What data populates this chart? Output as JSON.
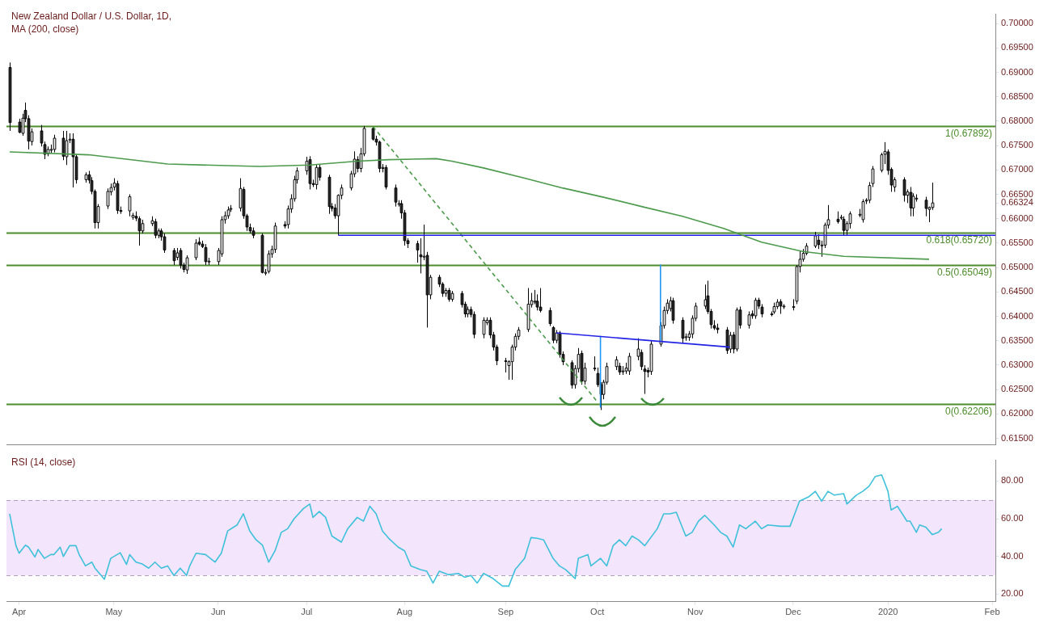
{
  "chart_data": [
    {
      "type": "candlestick",
      "title": "New Zealand Dollar / U.S. Dollar, 1D,",
      "subtitle": "MA (200, close)",
      "x": [
        "2019-03-29",
        "2019-04-01",
        "2019-04-02",
        "2019-04-03",
        "2019-04-04",
        "2019-04-05",
        "2019-04-08",
        "2019-04-09",
        "2019-04-10",
        "2019-04-11",
        "2019-04-12",
        "2019-04-15",
        "2019-04-16",
        "2019-04-17",
        "2019-04-18",
        "2019-04-19",
        "2019-04-22",
        "2019-04-23",
        "2019-04-24",
        "2019-04-25",
        "2019-04-26",
        "2019-04-29",
        "2019-04-30",
        "2019-05-01",
        "2019-05-02",
        "2019-05-03",
        "2019-05-06",
        "2019-05-07",
        "2019-05-08",
        "2019-05-09",
        "2019-05-10",
        "2019-05-13",
        "2019-05-14",
        "2019-05-15",
        "2019-05-16",
        "2019-05-17",
        "2019-05-20",
        "2019-05-21",
        "2019-05-22",
        "2019-05-23",
        "2019-05-24",
        "2019-05-27",
        "2019-05-28",
        "2019-05-29",
        "2019-05-30",
        "2019-05-31",
        "2019-06-03",
        "2019-06-04",
        "2019-06-05",
        "2019-06-06",
        "2019-06-07",
        "2019-06-10",
        "2019-06-11",
        "2019-06-12",
        "2019-06-13",
        "2019-06-14",
        "2019-06-17",
        "2019-06-18",
        "2019-06-19",
        "2019-06-20",
        "2019-06-21",
        "2019-06-24",
        "2019-06-25",
        "2019-06-26",
        "2019-06-27",
        "2019-06-28",
        "2019-07-01",
        "2019-07-02",
        "2019-07-03",
        "2019-07-04",
        "2019-07-05",
        "2019-07-08",
        "2019-07-09",
        "2019-07-10",
        "2019-07-11",
        "2019-07-12",
        "2019-07-15",
        "2019-07-16",
        "2019-07-17",
        "2019-07-18",
        "2019-07-19",
        "2019-07-22",
        "2019-07-23",
        "2019-07-24",
        "2019-07-25",
        "2019-07-26",
        "2019-07-29",
        "2019-07-30",
        "2019-07-31",
        "2019-08-01",
        "2019-08-02",
        "2019-08-05",
        "2019-08-06",
        "2019-08-07",
        "2019-08-08",
        "2019-08-09",
        "2019-08-12",
        "2019-08-13",
        "2019-08-14",
        "2019-08-15",
        "2019-08-16",
        "2019-08-19",
        "2019-08-20",
        "2019-08-21",
        "2019-08-22",
        "2019-08-23",
        "2019-08-26",
        "2019-08-27",
        "2019-08-28",
        "2019-08-29",
        "2019-08-30",
        "2019-09-02",
        "2019-09-03",
        "2019-09-04",
        "2019-09-05",
        "2019-09-06",
        "2019-09-09",
        "2019-09-10",
        "2019-09-11",
        "2019-09-12",
        "2019-09-13",
        "2019-09-16",
        "2019-09-17",
        "2019-09-18",
        "2019-09-19",
        "2019-09-20",
        "2019-09-23",
        "2019-09-24",
        "2019-09-25",
        "2019-09-26",
        "2019-09-27",
        "2019-09-30",
        "2019-10-01",
        "2019-10-02",
        "2019-10-03",
        "2019-10-04",
        "2019-10-07",
        "2019-10-08",
        "2019-10-09",
        "2019-10-10",
        "2019-10-11",
        "2019-10-14",
        "2019-10-15",
        "2019-10-16",
        "2019-10-17",
        "2019-10-18",
        "2019-10-21",
        "2019-10-22",
        "2019-10-23",
        "2019-10-24",
        "2019-10-25",
        "2019-10-28",
        "2019-10-29",
        "2019-10-30",
        "2019-10-31",
        "2019-11-01",
        "2019-11-04",
        "2019-11-05",
        "2019-11-06",
        "2019-11-07",
        "2019-11-08",
        "2019-11-11",
        "2019-11-12",
        "2019-11-13",
        "2019-11-14",
        "2019-11-15",
        "2019-11-18",
        "2019-11-19",
        "2019-11-20",
        "2019-11-21",
        "2019-11-22",
        "2019-11-25",
        "2019-11-26",
        "2019-11-27",
        "2019-11-28",
        "2019-11-29",
        "2019-12-02",
        "2019-12-03",
        "2019-12-04",
        "2019-12-05",
        "2019-12-06",
        "2019-12-09",
        "2019-12-10",
        "2019-12-11",
        "2019-12-12",
        "2019-12-13",
        "2019-12-16",
        "2019-12-17",
        "2019-12-18",
        "2019-12-19",
        "2019-12-20",
        "2019-12-23",
        "2019-12-24",
        "2019-12-25",
        "2019-12-26",
        "2019-12-27",
        "2019-12-30",
        "2019-12-31",
        "2020-01-01",
        "2020-01-02",
        "2020-01-03",
        "2020-01-06",
        "2020-01-07",
        "2020-01-08",
        "2020-01-09",
        "2020-01-10",
        "2020-01-13",
        "2020-01-14",
        "2020-01-15"
      ],
      "ohlc": [
        [
          0.691,
          0.692,
          0.678,
          0.6797
        ],
        [
          0.6798,
          0.6805,
          0.6775,
          0.6777
        ],
        [
          0.6775,
          0.6815,
          0.677,
          0.6806
        ],
        [
          0.6822,
          0.6838,
          0.6798,
          0.6805
        ],
        [
          0.6805,
          0.6812,
          0.6742,
          0.6759
        ],
        [
          0.6758,
          0.6785,
          0.675,
          0.6778
        ],
        [
          0.678,
          0.6792,
          0.6748,
          0.6755
        ],
        [
          0.6752,
          0.6758,
          0.6722,
          0.6732
        ],
        [
          0.6733,
          0.6748,
          0.6728,
          0.6742
        ],
        [
          0.6742,
          0.6752,
          0.6735,
          0.6742
        ],
        [
          0.6742,
          0.6772,
          0.6736,
          0.6765
        ],
        [
          0.6765,
          0.678,
          0.672,
          0.6728
        ],
        [
          0.6727,
          0.678,
          0.671,
          0.676
        ],
        [
          0.6763,
          0.6775,
          0.6755,
          0.6763
        ],
        [
          0.6763,
          0.6775,
          0.6664,
          0.6727
        ],
        [
          0.6727,
          0.6732,
          0.6672,
          0.668
        ],
        [
          0.668,
          0.6695,
          0.6674,
          0.669
        ],
        [
          0.669,
          0.6698,
          0.6672,
          0.6679
        ],
        [
          0.6678,
          0.6685,
          0.665,
          0.6656
        ],
        [
          0.6656,
          0.666,
          0.658,
          0.6592
        ],
        [
          0.6592,
          0.663,
          0.658,
          0.6625
        ],
        [
          0.6626,
          0.6662,
          0.662,
          0.6656
        ],
        [
          0.6655,
          0.6672,
          0.6648,
          0.6664
        ],
        [
          0.6665,
          0.6683,
          0.6658,
          0.6673
        ],
        [
          0.6672,
          0.6678,
          0.661,
          0.6617
        ],
        [
          0.6617,
          0.6625,
          0.661,
          0.6615
        ],
        [
          0.6616,
          0.665,
          0.6605,
          0.6645
        ],
        [
          0.6603,
          0.6612,
          0.6598,
          0.6607
        ],
        [
          0.6605,
          0.6615,
          0.6595,
          0.6601
        ],
        [
          0.66,
          0.6605,
          0.6545,
          0.6575
        ],
        [
          0.6575,
          0.6598,
          0.657,
          0.659
        ],
        [
          0.659,
          0.6605,
          0.6585,
          0.6596
        ],
        [
          0.6594,
          0.66,
          0.656,
          0.6566
        ],
        [
          0.6566,
          0.658,
          0.656,
          0.6575
        ],
        [
          0.6575,
          0.658,
          0.6555,
          0.6563
        ],
        [
          0.6563,
          0.657,
          0.653,
          0.6536
        ],
        [
          0.6535,
          0.654,
          0.6505,
          0.6514
        ],
        [
          0.6521,
          0.654,
          0.6515,
          0.653
        ],
        [
          0.6535,
          0.654,
          0.6498,
          0.6505
        ],
        [
          0.6505,
          0.651,
          0.649,
          0.6496
        ],
        [
          0.6495,
          0.6525,
          0.6487,
          0.652
        ],
        [
          0.652,
          0.6558,
          0.6515,
          0.655
        ],
        [
          0.6552,
          0.6562,
          0.6545,
          0.6548
        ],
        [
          0.6548,
          0.6555,
          0.654,
          0.6543
        ],
        [
          0.6541,
          0.6548,
          0.6505,
          0.6512
        ],
        [
          0.6513,
          0.652,
          0.6505,
          0.6513
        ],
        [
          0.6512,
          0.654,
          0.6505,
          0.6535
        ],
        [
          0.6528,
          0.6605,
          0.6522,
          0.6598
        ],
        [
          0.6598,
          0.6615,
          0.659,
          0.6606
        ],
        [
          0.6606,
          0.6625,
          0.66,
          0.6618
        ],
        [
          0.6621,
          0.6628,
          0.6614,
          0.6621
        ],
        [
          0.6622,
          0.6683,
          0.6615,
          0.6662
        ],
        [
          0.666,
          0.6665,
          0.66,
          0.6606
        ],
        [
          0.6606,
          0.661,
          0.6575,
          0.6583
        ],
        [
          0.6582,
          0.659,
          0.657,
          0.6575
        ],
        [
          0.6575,
          0.6582,
          0.656,
          0.6566
        ],
        [
          0.6566,
          0.657,
          0.6488,
          0.649
        ],
        [
          0.649,
          0.6497,
          0.6484,
          0.649
        ],
        [
          0.6492,
          0.6535,
          0.6488,
          0.6528
        ],
        [
          0.6528,
          0.6545,
          0.652,
          0.6537
        ],
        [
          0.6537,
          0.6592,
          0.653,
          0.6585
        ],
        [
          0.6588,
          0.6595,
          0.658,
          0.6585
        ],
        [
          0.6588,
          0.6627,
          0.658,
          0.662
        ],
        [
          0.662,
          0.665,
          0.6612,
          0.6641
        ],
        [
          0.6641,
          0.6688,
          0.6635,
          0.668
        ],
        [
          0.668,
          0.6705,
          0.6672,
          0.6698
        ],
        [
          0.6698,
          0.6727,
          0.669,
          0.6718
        ],
        [
          0.6721,
          0.6728,
          0.666,
          0.6672
        ],
        [
          0.6672,
          0.668,
          0.6665,
          0.667
        ],
        [
          0.667,
          0.6712,
          0.666,
          0.6705
        ],
        [
          0.6705,
          0.6712,
          0.6678,
          0.6685
        ],
        [
          0.6685,
          0.669,
          0.661,
          0.6625
        ],
        [
          0.6625,
          0.6632,
          0.6615,
          0.6621
        ],
        [
          0.6622,
          0.663,
          0.66,
          0.6606
        ],
        [
          0.6606,
          0.665,
          0.6566,
          0.6648
        ],
        [
          0.6648,
          0.667,
          0.664,
          0.6663
        ],
        [
          0.6663,
          0.6698,
          0.6658,
          0.6692
        ],
        [
          0.6692,
          0.6738,
          0.6685,
          0.6722
        ],
        [
          0.6721,
          0.6728,
          0.6695,
          0.6703
        ],
        [
          0.6703,
          0.6745,
          0.6695,
          0.6733
        ],
        [
          0.6733,
          0.679,
          0.6728,
          0.6785
        ],
        [
          0.6785,
          0.67892,
          0.676,
          0.6763
        ],
        [
          0.6763,
          0.677,
          0.675,
          0.6757
        ],
        [
          0.6757,
          0.676,
          0.6695,
          0.6703
        ],
        [
          0.6703,
          0.6712,
          0.6695,
          0.6705
        ],
        [
          0.6705,
          0.671,
          0.666,
          0.6665
        ],
        [
          0.6663,
          0.667,
          0.6625,
          0.6634
        ],
        [
          0.6631,
          0.6638,
          0.6625,
          0.6631
        ],
        [
          0.6631,
          0.6638,
          0.66,
          0.6612
        ],
        [
          0.6612,
          0.6618,
          0.6545,
          0.6555
        ],
        [
          0.6555,
          0.656,
          0.654,
          0.6549
        ],
        [
          0.6549,
          0.6555,
          0.651,
          0.6536
        ],
        [
          0.6526,
          0.656,
          0.6488,
          0.6522
        ],
        [
          0.6523,
          0.6588,
          0.6515,
          0.6523
        ],
        [
          0.6525,
          0.6532,
          0.6377,
          0.6444
        ],
        [
          0.6444,
          0.6485,
          0.6435,
          0.648
        ],
        [
          0.648,
          0.6485,
          0.646,
          0.6466
        ],
        [
          0.6466,
          0.647,
          0.644,
          0.6447
        ],
        [
          0.6447,
          0.6458,
          0.644,
          0.6453
        ],
        [
          0.6453,
          0.6458,
          0.643,
          0.6435
        ],
        [
          0.6435,
          0.6452,
          0.643,
          0.6447
        ],
        [
          0.6447,
          0.6452,
          0.6418,
          0.6424
        ],
        [
          0.6425,
          0.643,
          0.6398,
          0.6405
        ],
        [
          0.6405,
          0.642,
          0.6398,
          0.6414
        ],
        [
          0.6414,
          0.642,
          0.6398,
          0.6404
        ],
        [
          0.6404,
          0.641,
          0.6355,
          0.6363
        ],
        [
          0.6363,
          0.6398,
          0.6355,
          0.6392
        ],
        [
          0.6387,
          0.6398,
          0.6382,
          0.6392
        ],
        [
          0.6392,
          0.6398,
          0.6355,
          0.6362
        ],
        [
          0.6362,
          0.6368,
          0.633,
          0.6337
        ],
        [
          0.6337,
          0.6342,
          0.63,
          0.6309
        ],
        [
          0.6309,
          0.6315,
          0.6285,
          0.6309
        ],
        [
          0.6299,
          0.631,
          0.627,
          0.6307
        ],
        [
          0.6307,
          0.6342,
          0.627,
          0.6337
        ],
        [
          0.6337,
          0.6365,
          0.633,
          0.6359
        ],
        [
          0.6359,
          0.6378,
          0.6352,
          0.6372
        ],
        [
          0.6373,
          0.6458,
          0.6368,
          0.6425
        ],
        [
          0.6424,
          0.6448,
          0.6418,
          0.6432
        ],
        [
          0.6431,
          0.6454,
          0.6425,
          0.6431
        ],
        [
          0.6431,
          0.6445,
          0.6412,
          0.6419
        ],
        [
          0.6419,
          0.6458,
          0.6408,
          0.6412
        ],
        [
          0.6412,
          0.6418,
          0.638,
          0.6385
        ],
        [
          0.6377,
          0.638,
          0.6345,
          0.6351
        ],
        [
          0.6351,
          0.6372,
          0.6345,
          0.6366
        ],
        [
          0.6366,
          0.637,
          0.6315,
          0.6322
        ],
        [
          0.6322,
          0.6328,
          0.63,
          0.6307
        ],
        [
          0.6305,
          0.631,
          0.6252,
          0.6259
        ],
        [
          0.626,
          0.63,
          0.6252,
          0.6293
        ],
        [
          0.6293,
          0.6335,
          0.6285,
          0.6322
        ],
        [
          0.6324,
          0.633,
          0.626,
          0.6267
        ],
        [
          0.6267,
          0.6305,
          0.626,
          0.6294
        ],
        [
          0.6294,
          0.6318,
          0.6288,
          0.6294
        ],
        [
          0.6283,
          0.6295,
          0.6255,
          0.626
        ],
        [
          0.626,
          0.6265,
          0.6208,
          0.624
        ],
        [
          0.624,
          0.627,
          0.623,
          0.6265
        ],
        [
          0.6265,
          0.6305,
          0.626,
          0.6297
        ],
        [
          0.6297,
          0.6318,
          0.629,
          0.6311
        ],
        [
          0.6298,
          0.6305,
          0.628,
          0.6286
        ],
        [
          0.6288,
          0.6298,
          0.628,
          0.6288
        ],
        [
          0.6288,
          0.6305,
          0.6282,
          0.6294
        ],
        [
          0.6288,
          0.6325,
          0.628,
          0.6318
        ],
        [
          0.6318,
          0.6355,
          0.631,
          0.6333
        ],
        [
          0.6326,
          0.6332,
          0.629,
          0.6297
        ],
        [
          0.6292,
          0.63,
          0.6241,
          0.6287
        ],
        [
          0.6289,
          0.6295,
          0.6275,
          0.6286
        ],
        [
          0.6287,
          0.635,
          0.628,
          0.6343
        ],
        [
          0.6343,
          0.6388,
          0.6338,
          0.6381
        ],
        [
          0.6381,
          0.642,
          0.6375,
          0.6412
        ],
        [
          0.6412,
          0.6435,
          0.6405,
          0.6427
        ],
        [
          0.6416,
          0.644,
          0.641,
          0.6432
        ],
        [
          0.6432,
          0.6438,
          0.6385,
          0.6392
        ],
        [
          0.6392,
          0.6398,
          0.6345,
          0.6355
        ],
        [
          0.6358,
          0.6365,
          0.635,
          0.6358
        ],
        [
          0.6357,
          0.637,
          0.635,
          0.6364
        ],
        [
          0.6364,
          0.6402,
          0.6355,
          0.6396
        ],
        [
          0.6396,
          0.6428,
          0.639,
          0.6421
        ],
        [
          0.6421,
          0.6465,
          0.6415,
          0.6434
        ],
        [
          0.6442,
          0.6473,
          0.6405,
          0.641
        ],
        [
          0.641,
          0.6415,
          0.6375,
          0.6383
        ],
        [
          0.6381,
          0.6392,
          0.6372,
          0.6376
        ],
        [
          0.6376,
          0.6385,
          0.6365,
          0.6373
        ],
        [
          0.6372,
          0.6378,
          0.6323,
          0.633
        ],
        [
          0.6333,
          0.6368,
          0.6325,
          0.6361
        ],
        [
          0.6362,
          0.6368,
          0.6324,
          0.6333
        ],
        [
          0.6333,
          0.6418,
          0.6328,
          0.6413
        ],
        [
          0.6413,
          0.642,
          0.6375,
          0.6382
        ],
        [
          0.6382,
          0.641,
          0.6375,
          0.6403
        ],
        [
          0.6405,
          0.6412,
          0.6395,
          0.6401
        ],
        [
          0.6401,
          0.6438,
          0.6395,
          0.6433
        ],
        [
          0.6433,
          0.6438,
          0.6415,
          0.6421
        ],
        [
          0.6419,
          0.6425,
          0.6398,
          0.6405
        ],
        [
          0.6405,
          0.641,
          0.64,
          0.6405
        ],
        [
          0.6409,
          0.6428,
          0.6405,
          0.642
        ],
        [
          0.642,
          0.6435,
          0.6415,
          0.6429
        ],
        [
          0.643,
          0.6435,
          0.6405,
          0.6421
        ],
        [
          0.6421,
          0.6425,
          0.6415,
          0.6421
        ],
        [
          0.642,
          0.6435,
          0.6412,
          0.642
        ],
        [
          0.6431,
          0.6505,
          0.6425,
          0.6502
        ],
        [
          0.6502,
          0.6535,
          0.649,
          0.6517
        ],
        [
          0.6517,
          0.6538,
          0.6512,
          0.6529
        ],
        [
          0.6529,
          0.655,
          0.6525,
          0.6544
        ],
        [
          0.6544,
          0.6573,
          0.654,
          0.6565
        ],
        [
          0.6556,
          0.6568,
          0.6538,
          0.6547
        ],
        [
          0.6546,
          0.6555,
          0.6522,
          0.6546
        ],
        [
          0.6546,
          0.6592,
          0.654,
          0.6587
        ],
        [
          0.6587,
          0.6628,
          0.658,
          0.6598
        ],
        [
          0.6599,
          0.6615,
          0.659,
          0.6594
        ],
        [
          0.6603,
          0.6608,
          0.6598,
          0.6603
        ],
        [
          0.6599,
          0.6605,
          0.6565,
          0.6576
        ],
        [
          0.6576,
          0.6595,
          0.6565,
          0.659
        ],
        [
          0.659,
          0.6615,
          0.658,
          0.661
        ],
        [
          0.6609,
          0.662,
          0.6603,
          0.6609
        ],
        [
          0.6598,
          0.664,
          0.6592,
          0.6635
        ],
        [
          0.6638,
          0.6642,
          0.663,
          0.6638
        ],
        [
          0.6638,
          0.6675,
          0.6632,
          0.6668
        ],
        [
          0.6672,
          0.6708,
          0.6665,
          0.6702
        ],
        [
          0.6699,
          0.6735,
          0.6695,
          0.6731
        ],
        [
          0.6732,
          0.6757,
          0.6712,
          0.6738
        ],
        [
          0.6737,
          0.6742,
          0.669,
          0.6699
        ],
        [
          0.6701,
          0.6705,
          0.6655,
          0.6669
        ],
        [
          0.6665,
          0.6685,
          0.6655,
          0.668
        ],
        [
          0.668,
          0.6685,
          0.6635,
          0.6648
        ],
        [
          0.6648,
          0.666,
          0.6632,
          0.6655
        ],
        [
          0.6654,
          0.6665,
          0.6605,
          0.6622
        ],
        [
          0.6622,
          0.6652,
          0.6605,
          0.6646
        ],
        [
          0.6642,
          0.665,
          0.6635,
          0.6642
        ],
        [
          0.6638,
          0.6645,
          0.6605,
          0.6621
        ],
        [
          0.6619,
          0.6625,
          0.6593,
          0.6623
        ],
        [
          0.6623,
          0.6674,
          0.6618,
          0.66324
        ]
      ],
      "series": [
        {
          "type": "line",
          "color": "#4c9a4c",
          "x": [
            "2019-03-29",
            "2019-04-23",
            "2019-05-18",
            "2019-06-16",
            "2019-07-02",
            "2019-07-17",
            "2019-07-27",
            "2019-08-11",
            "2019-08-16",
            "2019-08-26",
            "2019-09-08",
            "2019-09-20",
            "2019-10-03",
            "2019-10-15",
            "2019-10-28",
            "2019-11-10",
            "2019-11-22",
            "2019-12-05",
            "2019-12-18",
            "2020-01-14"
          ],
          "values": [
            0.6737,
            0.6731,
            0.6712,
            0.6707,
            0.671,
            0.6718,
            0.6721,
            0.6723,
            0.6718,
            0.6704,
            0.6683,
            0.6663,
            0.6644,
            0.6625,
            0.6605,
            0.658,
            0.6552,
            0.6533,
            0.6523,
            0.6517
          ]
        },
        {
          "type": "line",
          "color": "#2323e6",
          "x": [
            "2019-07-11",
            "2020-02-04"
          ],
          "values": [
            0.6566,
            0.6566
          ]
        },
        {
          "type": "line",
          "color": "#2323e6",
          "x": [
            "2019-09-18",
            "2019-11-12"
          ],
          "values": [
            0.6366,
            0.6337
          ]
        },
        {
          "type": "line",
          "color": "#2196f3",
          "x": [
            "2019-10-02",
            "2019-10-02"
          ],
          "values": [
            0.6359,
            0.6214
          ]
        },
        {
          "type": "line",
          "color": "#2196f3",
          "x": [
            "2019-10-21",
            "2019-10-21"
          ],
          "values": [
            0.6505,
            0.6351
          ]
        },
        {
          "type": "line",
          "color": "#4c9a4c",
          "line_style": "dashed",
          "x": [
            "2019-07-22",
            "2019-10-01"
          ],
          "values": [
            0.6789,
            0.6225
          ]
        }
      ],
      "xlim": [
        "2019-03-28",
        "2020-02-04"
      ],
      "ylim": [
        0.6137,
        0.7019
      ],
      "yticks": [
        {
          "value": 0.615,
          "label": "0.61500"
        },
        {
          "value": 0.62,
          "label": "0.62000"
        },
        {
          "value": 0.625,
          "label": "0.62500"
        },
        {
          "value": 0.63,
          "label": "0.63000"
        },
        {
          "value": 0.635,
          "label": "0.63500"
        },
        {
          "value": 0.64,
          "label": "0.64000"
        },
        {
          "value": 0.645,
          "label": "0.64500"
        },
        {
          "value": 0.65,
          "label": "0.65000"
        },
        {
          "value": 0.655,
          "label": "0.65500"
        },
        {
          "value": 0.66,
          "label": "0.66000"
        },
        {
          "value": 0.66324,
          "label": "0.66324"
        },
        {
          "value": 0.665,
          "label": "0.66500"
        },
        {
          "value": 0.67,
          "label": "0.67000"
        },
        {
          "value": 0.675,
          "label": "0.67500"
        },
        {
          "value": 0.68,
          "label": "0.68000"
        },
        {
          "value": 0.685,
          "label": "0.68500"
        },
        {
          "value": 0.69,
          "label": "0.69000"
        },
        {
          "value": 0.695,
          "label": "0.69500"
        },
        {
          "value": 0.7,
          "label": "0.70000"
        }
      ],
      "ref_lines": [
        {
          "axis": "y",
          "value": 0.67892,
          "label": "1(0.67892)",
          "color": "#4c8c2b"
        },
        {
          "axis": "y",
          "value": 0.6572,
          "label": "0.618(0.65720)",
          "color": "#4c8c2b"
        },
        {
          "axis": "y",
          "value": 0.65049,
          "label": "0.5(0.65049)",
          "color": "#4c8c2b"
        },
        {
          "axis": "y",
          "value": 0.62206,
          "label": "0(0.62206)",
          "color": "#4c8c2b"
        }
      ],
      "tick_labels": "y"
    },
    {
      "type": "line",
      "title": "RSI (14, close)",
      "series": [
        {
          "color": "#3fc1dc",
          "x": [
            "2019-03-29",
            "2019-03-31",
            "2019-04-01",
            "2019-04-03",
            "2019-04-04",
            "2019-04-06",
            "2019-04-07",
            "2019-04-09",
            "2019-04-11",
            "2019-04-12",
            "2019-04-14",
            "2019-04-15",
            "2019-04-17",
            "2019-04-19",
            "2019-04-20",
            "2019-04-22",
            "2019-04-24",
            "2019-04-25",
            "2019-04-28",
            "2019-04-30",
            "2019-05-03",
            "2019-05-05",
            "2019-05-06",
            "2019-05-08",
            "2019-05-10",
            "2019-05-12",
            "2019-05-14",
            "2019-05-16",
            "2019-05-18",
            "2019-05-20",
            "2019-05-22",
            "2019-05-24",
            "2019-05-25",
            "2019-05-27",
            "2019-05-30",
            "2019-06-02",
            "2019-06-04",
            "2019-06-06",
            "2019-06-09",
            "2019-06-11",
            "2019-06-13",
            "2019-06-15",
            "2019-06-17",
            "2019-06-19",
            "2019-06-21",
            "2019-06-23",
            "2019-06-25",
            "2019-06-27",
            "2019-06-30",
            "2019-07-02",
            "2019-07-03",
            "2019-07-05",
            "2019-07-07",
            "2019-07-09",
            "2019-07-12",
            "2019-07-14",
            "2019-07-17",
            "2019-07-19",
            "2019-07-21",
            "2019-07-23",
            "2019-07-25",
            "2019-07-27",
            "2019-07-30",
            "2019-08-01",
            "2019-08-03",
            "2019-08-06",
            "2019-08-08",
            "2019-08-10",
            "2019-08-12",
            "2019-08-15",
            "2019-08-18",
            "2019-08-20",
            "2019-08-22",
            "2019-08-24",
            "2019-08-26",
            "2019-08-29",
            "2019-09-01",
            "2019-09-03",
            "2019-09-05",
            "2019-09-08",
            "2019-09-10",
            "2019-09-12",
            "2019-09-14",
            "2019-09-17",
            "2019-09-19",
            "2019-09-21",
            "2019-09-24",
            "2019-09-25",
            "2019-09-28",
            "2019-09-29",
            "2019-10-02",
            "2019-10-04",
            "2019-10-06",
            "2019-10-08",
            "2019-10-10",
            "2019-10-12",
            "2019-10-14",
            "2019-10-16",
            "2019-10-20",
            "2019-10-22",
            "2019-10-24",
            "2019-10-26",
            "2019-10-29",
            "2019-10-31",
            "2019-11-02",
            "2019-11-04",
            "2019-11-07",
            "2019-11-09",
            "2019-11-11",
            "2019-11-13",
            "2019-11-15",
            "2019-11-17",
            "2019-11-20",
            "2019-11-22",
            "2019-11-24",
            "2019-11-28",
            "2019-12-01",
            "2019-12-04",
            "2019-12-07",
            "2019-12-09",
            "2019-12-11",
            "2019-12-13",
            "2019-12-15",
            "2019-12-18",
            "2019-12-19",
            "2019-12-22",
            "2019-12-24",
            "2019-12-26",
            "2019-12-28",
            "2019-12-30",
            "2020-01-01",
            "2020-01-02",
            "2020-01-04",
            "2020-01-07",
            "2020-01-08",
            "2020-01-10",
            "2020-01-11",
            "2020-01-13",
            "2020-01-15",
            "2020-01-17",
            "2020-01-18"
          ],
          "values": [
            62.6,
            45.7,
            41.7,
            46,
            44.9,
            39.7,
            43.7,
            39,
            41,
            41,
            44.9,
            40,
            45.7,
            45.7,
            41,
            35,
            37,
            33.8,
            27.9,
            39,
            42,
            35.8,
            41,
            37,
            36,
            33.8,
            37,
            33.8,
            35,
            29.9,
            33.8,
            29.9,
            35,
            41.7,
            41,
            37,
            41.7,
            53.5,
            56.7,
            62.6,
            53.5,
            48.8,
            46,
            37,
            43,
            52.8,
            54.7,
            59.9,
            65.4,
            67.8,
            60.7,
            63.8,
            60.7,
            50.8,
            47.6,
            54.7,
            60.7,
            58.7,
            66.6,
            62.6,
            53.5,
            49.6,
            44.9,
            43,
            35,
            33,
            32.2,
            25.9,
            32.2,
            30.3,
            31,
            29,
            29.9,
            25.9,
            31,
            28.3,
            24.3,
            24.3,
            33,
            39,
            50,
            49.6,
            48.8,
            39,
            35,
            33,
            28.3,
            39,
            41,
            35,
            39,
            35,
            45.7,
            48.8,
            45.7,
            50.8,
            48.8,
            45.7,
            54.7,
            62.6,
            62.6,
            63.4,
            50.8,
            52.8,
            58.7,
            61.8,
            56.7,
            52.8,
            50.8,
            45,
            56.7,
            54.7,
            58.7,
            54.7,
            56.7,
            56,
            56,
            69.3,
            71.7,
            74.5,
            69.3,
            74.5,
            72.5,
            73.3,
            67.8,
            72.5,
            74.5,
            77.2,
            82.4,
            83.2,
            74.5,
            64.6,
            66.6,
            58.7,
            58.7,
            52.8,
            56.7,
            55.5,
            51.6,
            52.8,
            54.7
          ]
        }
      ],
      "xlim": [
        "2019-03-28",
        "2020-02-04"
      ],
      "ylim": [
        16,
        91
      ],
      "xticks": [
        {
          "value": "2019-04-01",
          "label": "Apr"
        },
        {
          "value": "2019-05-01",
          "label": "May"
        },
        {
          "value": "2019-06-03",
          "label": "Jun"
        },
        {
          "value": "2019-07-01",
          "label": "Jul"
        },
        {
          "value": "2019-08-01",
          "label": "Aug"
        },
        {
          "value": "2019-09-02",
          "label": "Sep"
        },
        {
          "value": "2019-10-01",
          "label": "Oct"
        },
        {
          "value": "2019-11-01",
          "label": "Nov"
        },
        {
          "value": "2019-12-02",
          "label": "Dec"
        },
        {
          "value": "2020-01-01",
          "label": "2020"
        },
        {
          "value": "2020-02-03",
          "label": "Feb"
        }
      ],
      "yticks": [
        {
          "value": 20,
          "label": "20.00"
        },
        {
          "value": 40,
          "label": "40.00"
        },
        {
          "value": 60,
          "label": "60.00"
        },
        {
          "value": 80,
          "label": "80.00"
        }
      ],
      "bands": [
        {
          "axis": "y",
          "from": 30,
          "to": 70,
          "color": "#f3e5fb"
        }
      ],
      "ref_lines": [
        {
          "axis": "y",
          "value": 30,
          "color": "#b0a0bb",
          "line_style": "dashed"
        },
        {
          "axis": "y",
          "value": 70,
          "color": "#b0a0bb",
          "line_style": "dashed"
        }
      ]
    }
  ]
}
